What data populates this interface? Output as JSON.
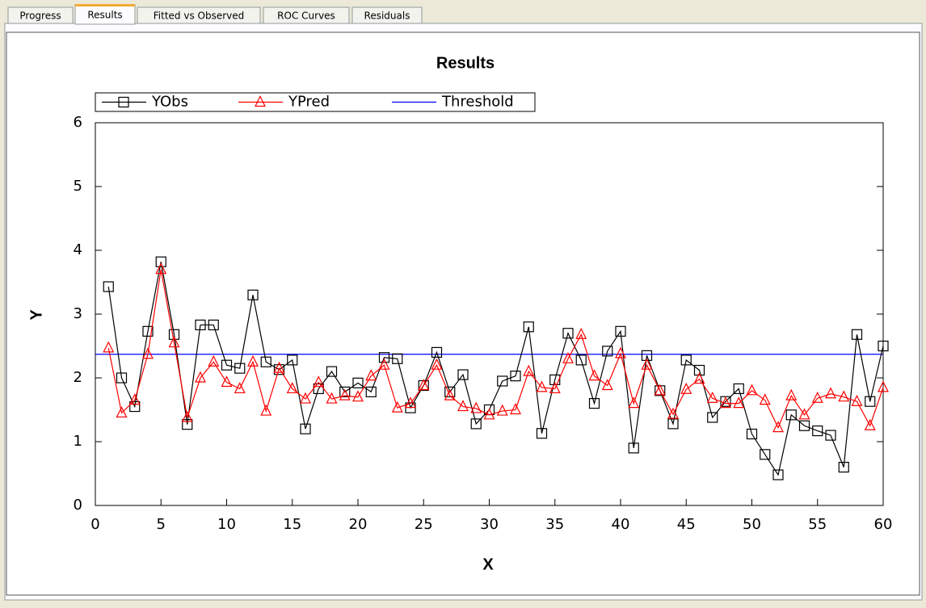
{
  "tabs": [
    "Progress",
    "Results",
    "Fitted vs Observed",
    "ROC Curves",
    "Residuals"
  ],
  "selected_tab": 1,
  "chart_data": {
    "type": "line",
    "title": "Results",
    "x_label": "X",
    "y_label": "Y",
    "x": [
      1,
      2,
      3,
      4,
      5,
      6,
      7,
      8,
      9,
      10,
      11,
      12,
      13,
      14,
      15,
      16,
      17,
      18,
      19,
      20,
      21,
      22,
      23,
      24,
      25,
      26,
      27,
      28,
      29,
      30,
      31,
      32,
      33,
      34,
      35,
      36,
      37,
      38,
      39,
      40,
      41,
      42,
      43,
      44,
      45,
      46,
      47,
      48,
      49,
      50,
      51,
      52,
      53,
      54,
      55,
      56,
      57,
      58,
      59,
      60
    ],
    "series": [
      {
        "name": "YObs",
        "color": "#000000",
        "marker": "square",
        "values": [
          3.43,
          2.0,
          1.55,
          2.73,
          3.82,
          2.68,
          1.27,
          2.83,
          2.83,
          2.2,
          2.15,
          3.3,
          2.25,
          2.13,
          2.28,
          1.2,
          1.83,
          2.1,
          1.78,
          1.92,
          1.78,
          2.32,
          2.3,
          1.53,
          1.88,
          2.4,
          1.78,
          2.05,
          1.28,
          1.5,
          1.95,
          2.03,
          2.8,
          1.13,
          1.97,
          2.7,
          2.28,
          1.6,
          2.42,
          2.73,
          0.9,
          2.35,
          1.8,
          1.28,
          2.28,
          2.12,
          1.38,
          1.63,
          1.83,
          1.12,
          0.8,
          0.48,
          1.42,
          1.25,
          1.17,
          1.1,
          0.6,
          2.68,
          1.63,
          2.5
        ]
      },
      {
        "name": "YPred",
        "color": "#ff0000",
        "marker": "triangle",
        "values": [
          2.47,
          1.45,
          1.65,
          2.37,
          3.7,
          2.55,
          1.38,
          2.0,
          2.25,
          1.93,
          1.83,
          2.25,
          1.48,
          2.15,
          1.83,
          1.67,
          1.93,
          1.67,
          1.72,
          1.7,
          2.03,
          2.2,
          1.53,
          1.6,
          1.88,
          2.2,
          1.72,
          1.55,
          1.52,
          1.42,
          1.48,
          1.5,
          2.1,
          1.85,
          1.83,
          2.3,
          2.68,
          2.03,
          1.88,
          2.38,
          1.6,
          2.2,
          1.8,
          1.43,
          1.82,
          1.98,
          1.68,
          1.6,
          1.6,
          1.8,
          1.65,
          1.22,
          1.72,
          1.42,
          1.68,
          1.75,
          1.7,
          1.63,
          1.25,
          1.85
        ]
      }
    ],
    "threshold": {
      "name": "Threshold",
      "value": 2.37,
      "color": "#0000ff"
    },
    "xlim": [
      0,
      60
    ],
    "xticks": [
      0,
      5,
      10,
      15,
      20,
      25,
      30,
      35,
      40,
      45,
      50,
      55,
      60
    ],
    "ylim": [
      0,
      6
    ],
    "yticks": [
      0,
      1,
      2,
      3,
      4,
      5,
      6
    ]
  }
}
